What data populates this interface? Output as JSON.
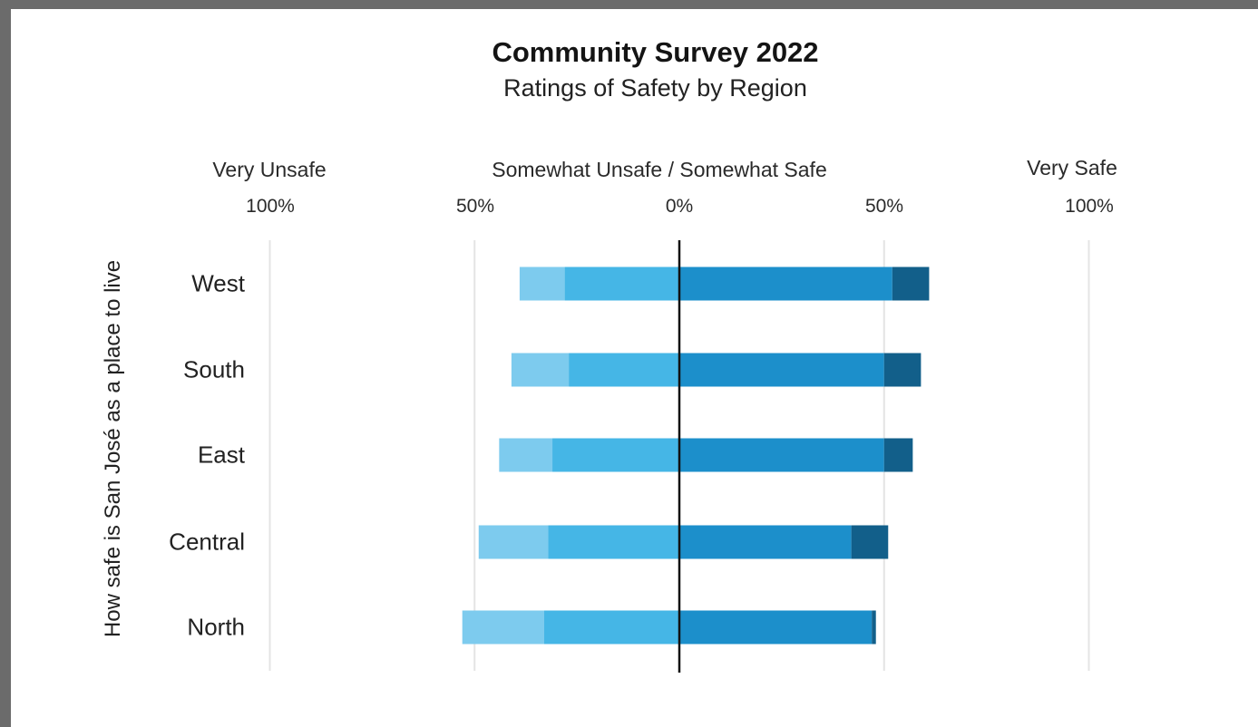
{
  "chart_data": {
    "type": "bar",
    "orientation": "horizontal-diverging",
    "title": "Community Survey 2022",
    "subtitle": "Ratings of Safety by Region",
    "ylabel": "How safe is San José as a place to live",
    "column_labels": {
      "left": "Very Unsafe",
      "center": "Somewhat Unsafe / Somewhat Safe",
      "right": "Very Safe"
    },
    "ticks": [
      {
        "value": -100,
        "label": "100%"
      },
      {
        "value": -50,
        "label": "50%"
      },
      {
        "value": 0,
        "label": "0%"
      },
      {
        "value": 50,
        "label": "50%"
      },
      {
        "value": 100,
        "label": "100%"
      }
    ],
    "xlim": [
      -100,
      100
    ],
    "categories": [
      "West",
      "South",
      "East",
      "Central",
      "North"
    ],
    "series": [
      {
        "name": "Very Unsafe",
        "side": "left",
        "color": "#7dcbee",
        "values": [
          11,
          14,
          13,
          17,
          20
        ]
      },
      {
        "name": "Somewhat Unsafe",
        "side": "left",
        "color": "#45b6e6",
        "values": [
          28,
          27,
          31,
          32,
          33
        ]
      },
      {
        "name": "Somewhat Safe",
        "side": "right",
        "color": "#1c8fcb",
        "values": [
          52,
          50,
          50,
          42,
          47
        ]
      },
      {
        "name": "Very Safe",
        "side": "right",
        "color": "#125f8a",
        "values": [
          9,
          9,
          7,
          9,
          1
        ]
      }
    ],
    "grid": true
  }
}
